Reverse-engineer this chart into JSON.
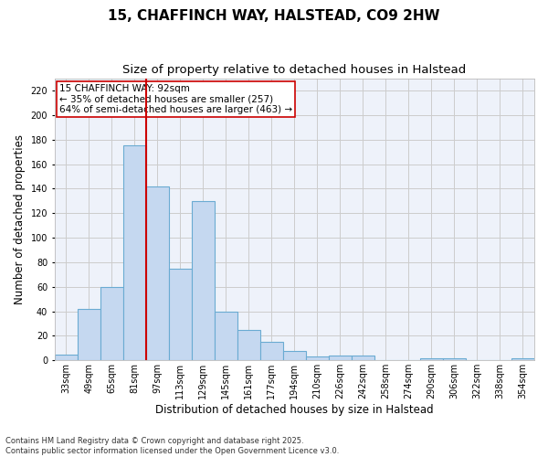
{
  "title1": "15, CHAFFINCH WAY, HALSTEAD, CO9 2HW",
  "title2": "Size of property relative to detached houses in Halstead",
  "xlabel": "Distribution of detached houses by size in Halstead",
  "ylabel": "Number of detached properties",
  "categories": [
    "33sqm",
    "49sqm",
    "65sqm",
    "81sqm",
    "97sqm",
    "113sqm",
    "129sqm",
    "145sqm",
    "161sqm",
    "177sqm",
    "194sqm",
    "210sqm",
    "226sqm",
    "242sqm",
    "258sqm",
    "274sqm",
    "290sqm",
    "306sqm",
    "322sqm",
    "338sqm",
    "354sqm"
  ],
  "values": [
    5,
    42,
    60,
    175,
    142,
    75,
    130,
    40,
    25,
    15,
    8,
    3,
    4,
    4,
    0,
    0,
    2,
    2,
    0,
    0,
    2
  ],
  "bar_color": "#c5d8f0",
  "bar_edge_color": "#6aabd2",
  "vline_color": "#cc0000",
  "annotation_text": "15 CHAFFINCH WAY: 92sqm\n← 35% of detached houses are smaller (257)\n64% of semi-detached houses are larger (463) →",
  "annotation_box_color": "#ffffff",
  "annotation_box_edge": "#cc0000",
  "ylim": [
    0,
    230
  ],
  "yticks": [
    0,
    20,
    40,
    60,
    80,
    100,
    120,
    140,
    160,
    180,
    200,
    220
  ],
  "grid_color": "#cccccc",
  "bg_color": "#ffffff",
  "plot_bg_color": "#eef2fa",
  "footer": "Contains HM Land Registry data © Crown copyright and database right 2025.\nContains public sector information licensed under the Open Government Licence v3.0.",
  "title_fontsize": 11,
  "subtitle_fontsize": 9.5,
  "axis_label_fontsize": 8.5,
  "tick_fontsize": 7,
  "annotation_fontsize": 7.5,
  "footer_fontsize": 6
}
